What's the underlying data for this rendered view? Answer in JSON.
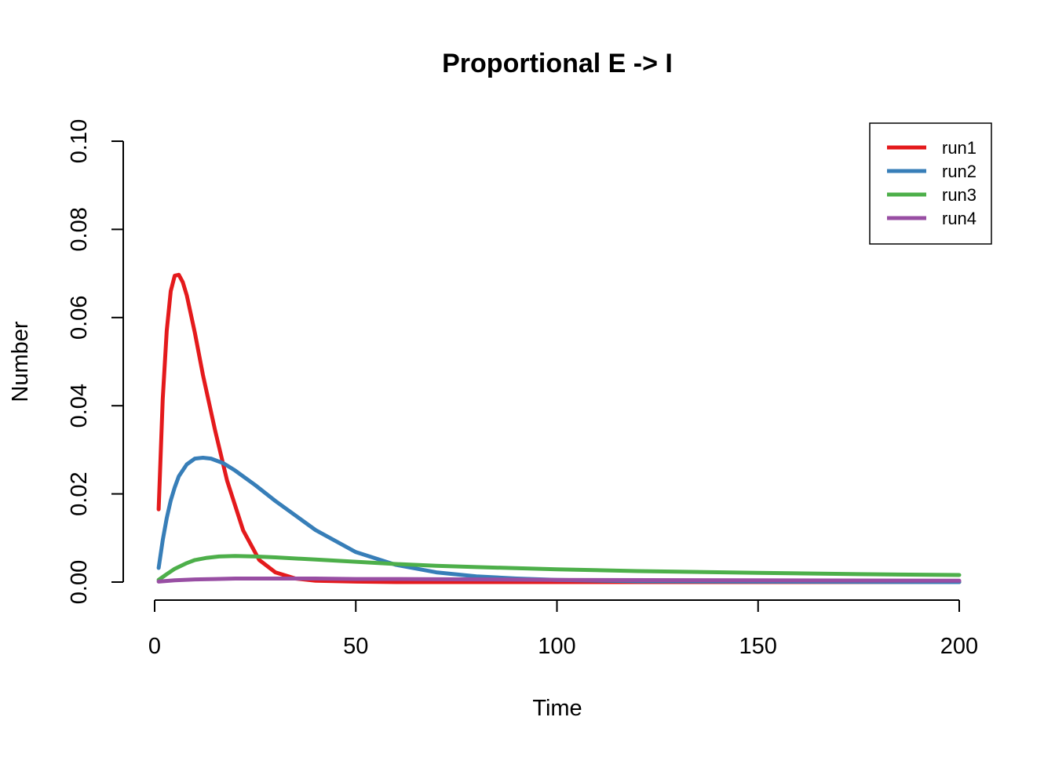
{
  "chart_data": {
    "type": "line",
    "title": "Proportional E -> I",
    "xlabel": "Time",
    "ylabel": "Number",
    "xlim": [
      0,
      200
    ],
    "ylim": [
      0,
      0.1
    ],
    "xticks": [
      0,
      50,
      100,
      150,
      200
    ],
    "yticks": [
      0,
      0.02,
      0.04,
      0.06,
      0.08,
      0.1
    ],
    "xtick_labels": [
      "0",
      "50",
      "100",
      "150",
      "200"
    ],
    "ytick_labels": [
      "0.00",
      "0.02",
      "0.04",
      "0.06",
      "0.08",
      "0.10"
    ],
    "grid": false,
    "legend_position": "top-right",
    "series": [
      {
        "name": "run1",
        "color": "#E41A1C",
        "x": [
          1,
          2,
          3,
          4,
          5,
          6,
          7,
          8,
          10,
          12,
          15,
          18,
          22,
          26,
          30,
          35,
          40,
          50,
          60,
          80,
          100,
          150,
          200
        ],
        "y": [
          0.0165,
          0.0415,
          0.057,
          0.066,
          0.0695,
          0.0697,
          0.068,
          0.065,
          0.0565,
          0.047,
          0.0345,
          0.023,
          0.0117,
          0.005,
          0.0022,
          0.0008,
          0.0003,
          0.0001,
          0,
          0,
          0,
          0,
          0
        ]
      },
      {
        "name": "run2",
        "color": "#377EB8",
        "x": [
          1,
          2,
          3,
          4,
          5,
          6,
          8,
          10,
          12,
          14,
          17,
          20,
          25,
          30,
          40,
          50,
          60,
          70,
          80,
          90,
          100,
          120,
          150,
          200
        ],
        "y": [
          0.0032,
          0.0095,
          0.0145,
          0.0185,
          0.0215,
          0.024,
          0.0267,
          0.028,
          0.0282,
          0.028,
          0.027,
          0.0253,
          0.022,
          0.0184,
          0.0118,
          0.0068,
          0.0039,
          0.0022,
          0.0013,
          0.0008,
          0.0005,
          0.0002,
          0.0001,
          0
        ]
      },
      {
        "name": "run3",
        "color": "#4DAF4A",
        "x": [
          1,
          3,
          5,
          8,
          10,
          13,
          16,
          20,
          25,
          30,
          40,
          50,
          60,
          70,
          80,
          100,
          120,
          150,
          175,
          200
        ],
        "y": [
          0.0005,
          0.0018,
          0.003,
          0.0043,
          0.005,
          0.0055,
          0.0058,
          0.0059,
          0.0058,
          0.0056,
          0.0051,
          0.0046,
          0.0041,
          0.0037,
          0.0034,
          0.0029,
          0.0025,
          0.0021,
          0.0018,
          0.0016
        ]
      },
      {
        "name": "run4",
        "color": "#984EA3",
        "x": [
          1,
          5,
          10,
          15,
          20,
          30,
          40,
          50,
          60,
          80,
          100,
          150,
          200
        ],
        "y": [
          0.0001,
          0.0004,
          0.0006,
          0.0007,
          0.0008,
          0.0008,
          0.0008,
          0.0007,
          0.0007,
          0.0006,
          0.0005,
          0.0004,
          0.0003
        ]
      }
    ]
  }
}
